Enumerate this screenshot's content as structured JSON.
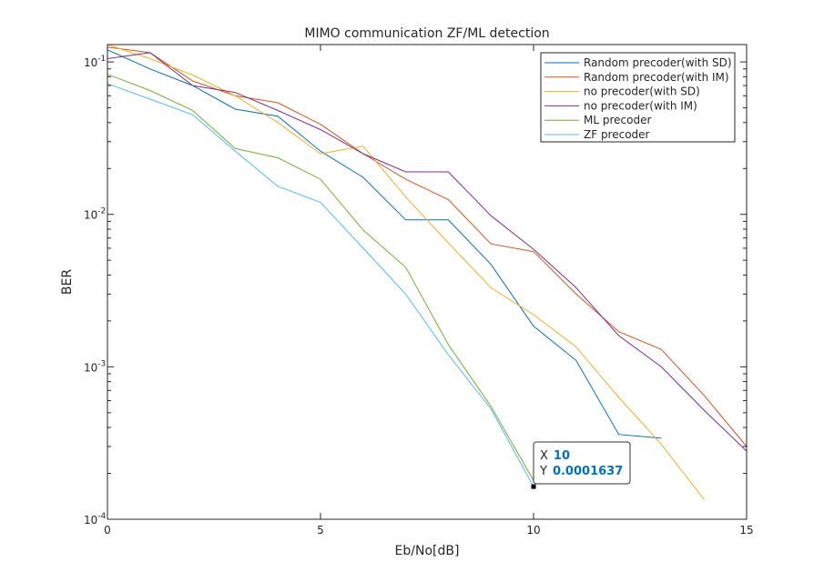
{
  "chart_data": {
    "type": "line",
    "title": "MIMO communication ZF/ML detection",
    "xlabel": "Eb/No[dB]",
    "ylabel": "BER",
    "xlim": [
      0,
      15
    ],
    "ylim": [
      0.0001,
      0.13
    ],
    "yscale": "log",
    "x_ticks": [
      0,
      5,
      10,
      15
    ],
    "y_ticks": [
      {
        "value": 0.1,
        "base": "10",
        "exp": "-1"
      },
      {
        "value": 0.01,
        "base": "10",
        "exp": "-2"
      },
      {
        "value": 0.001,
        "base": "10",
        "exp": "-3"
      },
      {
        "value": 0.0001,
        "base": "10",
        "exp": "-4"
      }
    ],
    "legend_position": "top-right",
    "series": [
      {
        "name": "Random precoder(with SD)",
        "color": "#0072bd",
        "x": [
          0,
          1,
          2,
          3,
          4,
          5,
          6,
          7,
          8,
          9,
          10,
          11,
          12,
          13
        ],
        "y": [
          0.12,
          0.09,
          0.07,
          0.049,
          0.044,
          0.026,
          0.0175,
          0.0092,
          0.0092,
          0.0047,
          0.00185,
          0.0011,
          0.00036,
          0.00034
        ]
      },
      {
        "name": "Random precoder(with IM)",
        "color": "#d95319",
        "x": [
          0,
          1,
          2,
          3,
          4,
          5,
          6,
          7,
          8,
          9,
          10,
          11,
          12,
          13,
          14,
          15
        ],
        "y": [
          0.125,
          0.115,
          0.075,
          0.06,
          0.054,
          0.039,
          0.025,
          0.017,
          0.0125,
          0.0064,
          0.0057,
          0.003,
          0.0017,
          0.0013,
          0.00065,
          0.0003
        ]
      },
      {
        "name": "no precoder(with SD)",
        "color": "#edb120",
        "x": [
          0,
          1,
          2,
          3,
          4,
          5,
          6,
          7,
          8,
          9,
          10,
          11,
          12,
          13,
          14
        ],
        "y": [
          0.13,
          0.105,
          0.082,
          0.06,
          0.04,
          0.025,
          0.028,
          0.013,
          0.0065,
          0.0033,
          0.0022,
          0.00135,
          0.00063,
          0.00031,
          0.000135
        ]
      },
      {
        "name": "no precoder(with IM)",
        "color": "#7e2f8e",
        "x": [
          0,
          1,
          2,
          3,
          4,
          5,
          6,
          7,
          8,
          9,
          10,
          11,
          12,
          13,
          14,
          15
        ],
        "y": [
          0.105,
          0.115,
          0.07,
          0.063,
          0.048,
          0.036,
          0.025,
          0.019,
          0.019,
          0.0098,
          0.0059,
          0.0033,
          0.0016,
          0.001,
          0.00052,
          0.00028
        ]
      },
      {
        "name": "ML precoder",
        "color": "#77ac30",
        "x": [
          0,
          1,
          2,
          3,
          4,
          5,
          6,
          7,
          8,
          9,
          10
        ],
        "y": [
          0.083,
          0.065,
          0.048,
          0.027,
          0.0235,
          0.017,
          0.0079,
          0.0045,
          0.0014,
          0.00055,
          0.00018
        ]
      },
      {
        "name": "ZF precoder",
        "color": "#4dbeee",
        "x": [
          0,
          1,
          2,
          3,
          4,
          5,
          6,
          7,
          8,
          9,
          10
        ],
        "y": [
          0.072,
          0.057,
          0.045,
          0.026,
          0.0153,
          0.012,
          0.006,
          0.003,
          0.0012,
          0.00053,
          0.0001637
        ]
      }
    ],
    "datatip": {
      "x_prefix": "X",
      "y_prefix": "Y",
      "x": 10,
      "y": 0.0001637,
      "x_text": "10",
      "y_text": "0.0001637",
      "value_color": "#0072bd"
    }
  }
}
